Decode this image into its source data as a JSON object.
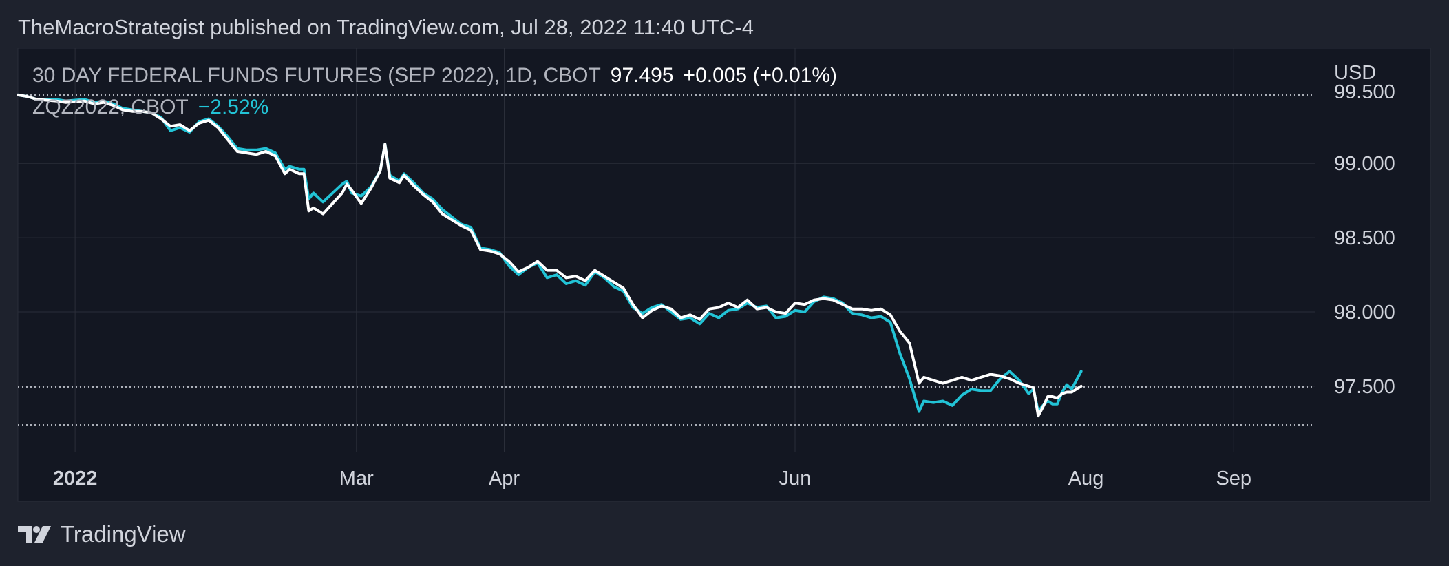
{
  "header": {
    "publisher_line": "TheMacroStrategist published on TradingView.com, Jul 28, 2022 11:40 UTC-4"
  },
  "legend": {
    "main_symbol": "30 DAY FEDERAL FUNDS FUTURES (SEP 2022), 1D, CBOT",
    "main_value": "97.495",
    "main_change": "+0.005 (+0.01%)",
    "compare_symbol": "ZQZ2022, CBOT",
    "compare_change": "−2.52%"
  },
  "axis": {
    "currency": "USD",
    "top_partial_label": "99.500"
  },
  "footer": {
    "brand": "TradingView"
  },
  "colors": {
    "background": "#1e222d",
    "plot_background": "#131722",
    "main_series": "#ffffff",
    "compare_series": "#22c3d6",
    "text": "#d1d4dc",
    "grid": "#2a2e39"
  },
  "chart_data": {
    "type": "line",
    "title": "30 DAY FEDERAL FUNDS FUTURES (SEP 2022), 1D, CBOT",
    "xlabel": "",
    "ylabel": "",
    "x_ticks": [
      {
        "date": "2022-01-01",
        "label": "2022",
        "bold": true
      },
      {
        "date": "2022-03-01",
        "label": "Mar"
      },
      {
        "date": "2022-04-01",
        "label": "Apr"
      },
      {
        "date": "2022-06-01",
        "label": "Jun"
      },
      {
        "date": "2022-08-01",
        "label": "Aug"
      },
      {
        "date": "2022-09-01",
        "label": "Sep"
      }
    ],
    "y_ticks": [
      99.0,
      98.5,
      98.0,
      97.5
    ],
    "xlim": [
      "2021-12-20",
      "2022-09-18"
    ],
    "ylim": [
      97.24,
      99.52
    ],
    "grid": true,
    "reference_lines": [
      {
        "value": 97.495,
        "style": "dotted",
        "label": "97.500"
      },
      {
        "value": 99.46,
        "style": "dotted"
      },
      {
        "value": 97.24,
        "style": "dotted"
      }
    ],
    "series": [
      {
        "name": "30 DAY FEDERAL FUNDS FUTURES (SEP 2022)",
        "color": "#ffffff",
        "points": [
          [
            "2021-12-20",
            99.46
          ],
          [
            "2021-12-22",
            99.45
          ],
          [
            "2021-12-24",
            99.43
          ],
          [
            "2021-12-28",
            99.42
          ],
          [
            "2021-12-30",
            99.41
          ],
          [
            "2022-01-03",
            99.42
          ],
          [
            "2022-01-05",
            99.4
          ],
          [
            "2022-01-07",
            99.41
          ],
          [
            "2022-01-09",
            99.39
          ],
          [
            "2022-01-11",
            99.36
          ],
          [
            "2022-01-13",
            99.35
          ],
          [
            "2022-01-15",
            99.35
          ],
          [
            "2022-01-17",
            99.34
          ],
          [
            "2022-01-19",
            99.3
          ],
          [
            "2022-01-21",
            99.25
          ],
          [
            "2022-01-23",
            99.26
          ],
          [
            "2022-01-25",
            99.22
          ],
          [
            "2022-01-27",
            99.27
          ],
          [
            "2022-01-29",
            99.29
          ],
          [
            "2022-01-31",
            99.24
          ],
          [
            "2022-02-02",
            99.16
          ],
          [
            "2022-02-04",
            99.08
          ],
          [
            "2022-02-06",
            99.07
          ],
          [
            "2022-02-08",
            99.06
          ],
          [
            "2022-02-10",
            99.08
          ],
          [
            "2022-02-12",
            99.05
          ],
          [
            "2022-02-14",
            98.93
          ],
          [
            "2022-02-15",
            98.96
          ],
          [
            "2022-02-17",
            98.93
          ],
          [
            "2022-02-18",
            98.93
          ],
          [
            "2022-02-19",
            98.68
          ],
          [
            "2022-02-20",
            98.7
          ],
          [
            "2022-02-22",
            98.66
          ],
          [
            "2022-02-24",
            98.73
          ],
          [
            "2022-02-26",
            98.8
          ],
          [
            "2022-02-27",
            98.86
          ],
          [
            "2022-02-28",
            98.82
          ],
          [
            "2022-03-02",
            98.73
          ],
          [
            "2022-03-04",
            98.83
          ],
          [
            "2022-03-06",
            98.95
          ],
          [
            "2022-03-07",
            99.13
          ],
          [
            "2022-03-08",
            98.9
          ],
          [
            "2022-03-10",
            98.87
          ],
          [
            "2022-03-11",
            98.92
          ],
          [
            "2022-03-13",
            98.85
          ],
          [
            "2022-03-15",
            98.79
          ],
          [
            "2022-03-17",
            98.74
          ],
          [
            "2022-03-19",
            98.66
          ],
          [
            "2022-03-21",
            98.62
          ],
          [
            "2022-03-23",
            98.58
          ],
          [
            "2022-03-25",
            98.55
          ],
          [
            "2022-03-27",
            98.42
          ],
          [
            "2022-03-29",
            98.41
          ],
          [
            "2022-03-31",
            98.39
          ],
          [
            "2022-04-02",
            98.34
          ],
          [
            "2022-04-04",
            98.27
          ],
          [
            "2022-04-06",
            98.3
          ],
          [
            "2022-04-08",
            98.34
          ],
          [
            "2022-04-10",
            98.28
          ],
          [
            "2022-04-12",
            98.28
          ],
          [
            "2022-04-14",
            98.23
          ],
          [
            "2022-04-16",
            98.24
          ],
          [
            "2022-04-18",
            98.21
          ],
          [
            "2022-04-20",
            98.28
          ],
          [
            "2022-04-22",
            98.24
          ],
          [
            "2022-04-24",
            98.2
          ],
          [
            "2022-04-26",
            98.16
          ],
          [
            "2022-04-28",
            98.05
          ],
          [
            "2022-04-30",
            97.96
          ],
          [
            "2022-05-02",
            98.01
          ],
          [
            "2022-05-04",
            98.04
          ],
          [
            "2022-05-06",
            98.02
          ],
          [
            "2022-05-08",
            97.96
          ],
          [
            "2022-05-10",
            97.98
          ],
          [
            "2022-05-12",
            97.95
          ],
          [
            "2022-05-14",
            98.02
          ],
          [
            "2022-05-16",
            98.03
          ],
          [
            "2022-05-18",
            98.06
          ],
          [
            "2022-05-20",
            98.03
          ],
          [
            "2022-05-22",
            98.08
          ],
          [
            "2022-05-24",
            98.02
          ],
          [
            "2022-05-26",
            98.03
          ],
          [
            "2022-05-28",
            98.0
          ],
          [
            "2022-05-30",
            97.99
          ],
          [
            "2022-06-01",
            98.06
          ],
          [
            "2022-06-03",
            98.05
          ],
          [
            "2022-06-05",
            98.08
          ],
          [
            "2022-06-07",
            98.09
          ],
          [
            "2022-06-09",
            98.08
          ],
          [
            "2022-06-11",
            98.05
          ],
          [
            "2022-06-13",
            98.02
          ],
          [
            "2022-06-15",
            98.02
          ],
          [
            "2022-06-17",
            98.01
          ],
          [
            "2022-06-19",
            98.02
          ],
          [
            "2022-06-21",
            97.98
          ],
          [
            "2022-06-23",
            97.87
          ],
          [
            "2022-06-25",
            97.79
          ],
          [
            "2022-06-27",
            97.52
          ],
          [
            "2022-06-28",
            97.56
          ],
          [
            "2022-06-30",
            97.54
          ],
          [
            "2022-07-02",
            97.52
          ],
          [
            "2022-07-04",
            97.54
          ],
          [
            "2022-07-06",
            97.56
          ],
          [
            "2022-07-08",
            97.54
          ],
          [
            "2022-07-10",
            97.56
          ],
          [
            "2022-07-12",
            97.58
          ],
          [
            "2022-07-14",
            97.57
          ],
          [
            "2022-07-16",
            97.55
          ],
          [
            "2022-07-18",
            97.52
          ],
          [
            "2022-07-20",
            97.5
          ],
          [
            "2022-07-21",
            97.49
          ],
          [
            "2022-07-22",
            97.3
          ],
          [
            "2022-07-23",
            97.36
          ],
          [
            "2022-07-24",
            97.43
          ],
          [
            "2022-07-25",
            97.43
          ],
          [
            "2022-07-26",
            97.42
          ],
          [
            "2022-07-27",
            97.45
          ],
          [
            "2022-07-28",
            97.46
          ],
          [
            "2022-07-29",
            97.46
          ],
          [
            "2022-07-30",
            97.48
          ],
          [
            "2022-07-31",
            97.5
          ]
        ]
      },
      {
        "name": "ZQZ2022, CBOT",
        "color": "#22c3d6",
        "points": [
          [
            "2021-12-20",
            99.46
          ],
          [
            "2021-12-22",
            99.45
          ],
          [
            "2021-12-24",
            99.43
          ],
          [
            "2021-12-28",
            99.43
          ],
          [
            "2021-12-30",
            99.42
          ],
          [
            "2022-01-03",
            99.43
          ],
          [
            "2022-01-05",
            99.41
          ],
          [
            "2022-01-07",
            99.42
          ],
          [
            "2022-01-09",
            99.4
          ],
          [
            "2022-01-11",
            99.37
          ],
          [
            "2022-01-13",
            99.36
          ],
          [
            "2022-01-15",
            99.35
          ],
          [
            "2022-01-17",
            99.34
          ],
          [
            "2022-01-19",
            99.31
          ],
          [
            "2022-01-21",
            99.22
          ],
          [
            "2022-01-23",
            99.24
          ],
          [
            "2022-01-25",
            99.21
          ],
          [
            "2022-01-27",
            99.28
          ],
          [
            "2022-01-29",
            99.3
          ],
          [
            "2022-01-31",
            99.25
          ],
          [
            "2022-02-02",
            99.18
          ],
          [
            "2022-02-04",
            99.1
          ],
          [
            "2022-02-06",
            99.09
          ],
          [
            "2022-02-08",
            99.09
          ],
          [
            "2022-02-10",
            99.1
          ],
          [
            "2022-02-12",
            99.07
          ],
          [
            "2022-02-14",
            98.96
          ],
          [
            "2022-02-15",
            98.98
          ],
          [
            "2022-02-17",
            98.96
          ],
          [
            "2022-02-18",
            98.96
          ],
          [
            "2022-02-19",
            98.76
          ],
          [
            "2022-02-20",
            98.8
          ],
          [
            "2022-02-22",
            98.74
          ],
          [
            "2022-02-24",
            98.8
          ],
          [
            "2022-02-26",
            98.86
          ],
          [
            "2022-02-27",
            98.88
          ],
          [
            "2022-02-28",
            98.8
          ],
          [
            "2022-03-02",
            98.78
          ],
          [
            "2022-03-04",
            98.84
          ],
          [
            "2022-03-06",
            98.95
          ],
          [
            "2022-03-07",
            99.13
          ],
          [
            "2022-03-08",
            98.92
          ],
          [
            "2022-03-10",
            98.88
          ],
          [
            "2022-03-11",
            98.93
          ],
          [
            "2022-03-13",
            98.87
          ],
          [
            "2022-03-15",
            98.8
          ],
          [
            "2022-03-17",
            98.76
          ],
          [
            "2022-03-19",
            98.69
          ],
          [
            "2022-03-21",
            98.64
          ],
          [
            "2022-03-23",
            98.59
          ],
          [
            "2022-03-25",
            98.57
          ],
          [
            "2022-03-27",
            98.43
          ],
          [
            "2022-03-29",
            98.42
          ],
          [
            "2022-03-31",
            98.4
          ],
          [
            "2022-04-02",
            98.31
          ],
          [
            "2022-04-04",
            98.25
          ],
          [
            "2022-04-06",
            98.3
          ],
          [
            "2022-04-08",
            98.33
          ],
          [
            "2022-04-10",
            98.23
          ],
          [
            "2022-04-12",
            98.25
          ],
          [
            "2022-04-14",
            98.19
          ],
          [
            "2022-04-16",
            98.21
          ],
          [
            "2022-04-18",
            98.18
          ],
          [
            "2022-04-20",
            98.27
          ],
          [
            "2022-04-22",
            98.23
          ],
          [
            "2022-04-24",
            98.17
          ],
          [
            "2022-04-26",
            98.14
          ],
          [
            "2022-04-28",
            98.03
          ],
          [
            "2022-04-30",
            97.99
          ],
          [
            "2022-05-02",
            98.03
          ],
          [
            "2022-05-04",
            98.05
          ],
          [
            "2022-05-06",
            98.0
          ],
          [
            "2022-05-08",
            97.95
          ],
          [
            "2022-05-10",
            97.96
          ],
          [
            "2022-05-12",
            97.92
          ],
          [
            "2022-05-14",
            97.99
          ],
          [
            "2022-05-16",
            97.96
          ],
          [
            "2022-05-18",
            98.01
          ],
          [
            "2022-05-20",
            98.02
          ],
          [
            "2022-05-22",
            98.06
          ],
          [
            "2022-05-24",
            98.03
          ],
          [
            "2022-05-26",
            98.04
          ],
          [
            "2022-05-28",
            97.96
          ],
          [
            "2022-05-30",
            97.97
          ],
          [
            "2022-06-01",
            98.01
          ],
          [
            "2022-06-03",
            98.0
          ],
          [
            "2022-06-05",
            98.07
          ],
          [
            "2022-06-07",
            98.1
          ],
          [
            "2022-06-09",
            98.09
          ],
          [
            "2022-06-11",
            98.06
          ],
          [
            "2022-06-13",
            97.99
          ],
          [
            "2022-06-15",
            97.98
          ],
          [
            "2022-06-17",
            97.96
          ],
          [
            "2022-06-19",
            97.97
          ],
          [
            "2022-06-21",
            97.93
          ],
          [
            "2022-06-23",
            97.72
          ],
          [
            "2022-06-25",
            97.55
          ],
          [
            "2022-06-27",
            97.33
          ],
          [
            "2022-06-28",
            97.4
          ],
          [
            "2022-06-30",
            97.39
          ],
          [
            "2022-07-02",
            97.4
          ],
          [
            "2022-07-04",
            97.37
          ],
          [
            "2022-07-06",
            97.44
          ],
          [
            "2022-07-08",
            97.48
          ],
          [
            "2022-07-10",
            97.47
          ],
          [
            "2022-07-12",
            97.47
          ],
          [
            "2022-07-14",
            97.55
          ],
          [
            "2022-07-16",
            97.6
          ],
          [
            "2022-07-18",
            97.54
          ],
          [
            "2022-07-20",
            97.45
          ],
          [
            "2022-07-21",
            97.48
          ],
          [
            "2022-07-22",
            97.33
          ],
          [
            "2022-07-23",
            97.37
          ],
          [
            "2022-07-24",
            97.4
          ],
          [
            "2022-07-25",
            97.38
          ],
          [
            "2022-07-26",
            97.38
          ],
          [
            "2022-07-27",
            97.46
          ],
          [
            "2022-07-28",
            97.51
          ],
          [
            "2022-07-29",
            97.48
          ],
          [
            "2022-07-30",
            97.54
          ],
          [
            "2022-07-31",
            97.6
          ]
        ]
      }
    ]
  }
}
